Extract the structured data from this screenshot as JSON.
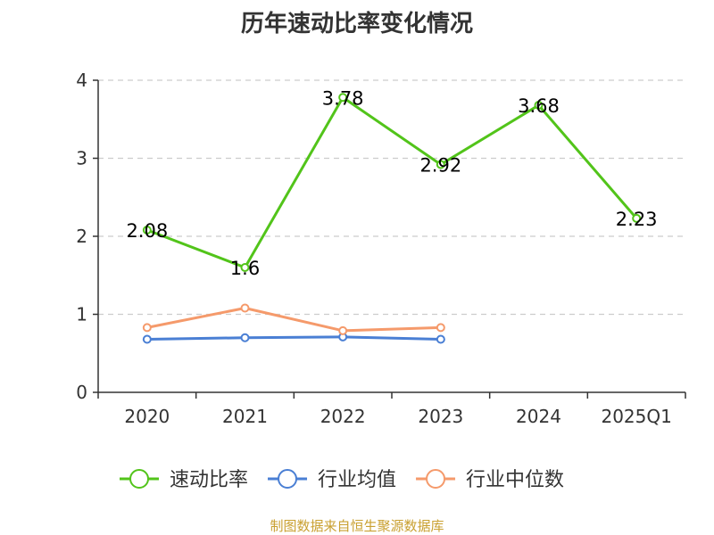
{
  "chart_data": {
    "type": "line",
    "title": "历年速动比率变化情况",
    "categories": [
      "2020",
      "2021",
      "2022",
      "2023",
      "2024",
      "2025Q1"
    ],
    "ylim": [
      0,
      4
    ],
    "yticks": [
      0,
      1,
      2,
      3,
      4
    ],
    "grid": true,
    "legend_position": "bottom",
    "series": [
      {
        "name": "速动比率",
        "color": "#52c41a",
        "values": [
          2.08,
          1.6,
          3.78,
          2.92,
          3.68,
          2.23
        ],
        "labels": [
          "2.08",
          "1.6",
          "3.78",
          "2.92",
          "3.68",
          "2.23"
        ]
      },
      {
        "name": "行业均值",
        "color": "#4a7fd4",
        "values": [
          0.68,
          0.7,
          0.71,
          0.68,
          null,
          null
        ]
      },
      {
        "name": "行业中位数",
        "color": "#f59a6b",
        "values": [
          0.83,
          1.08,
          0.79,
          0.83,
          null,
          null
        ]
      }
    ]
  },
  "source": "制图数据来自恒生聚源数据库"
}
